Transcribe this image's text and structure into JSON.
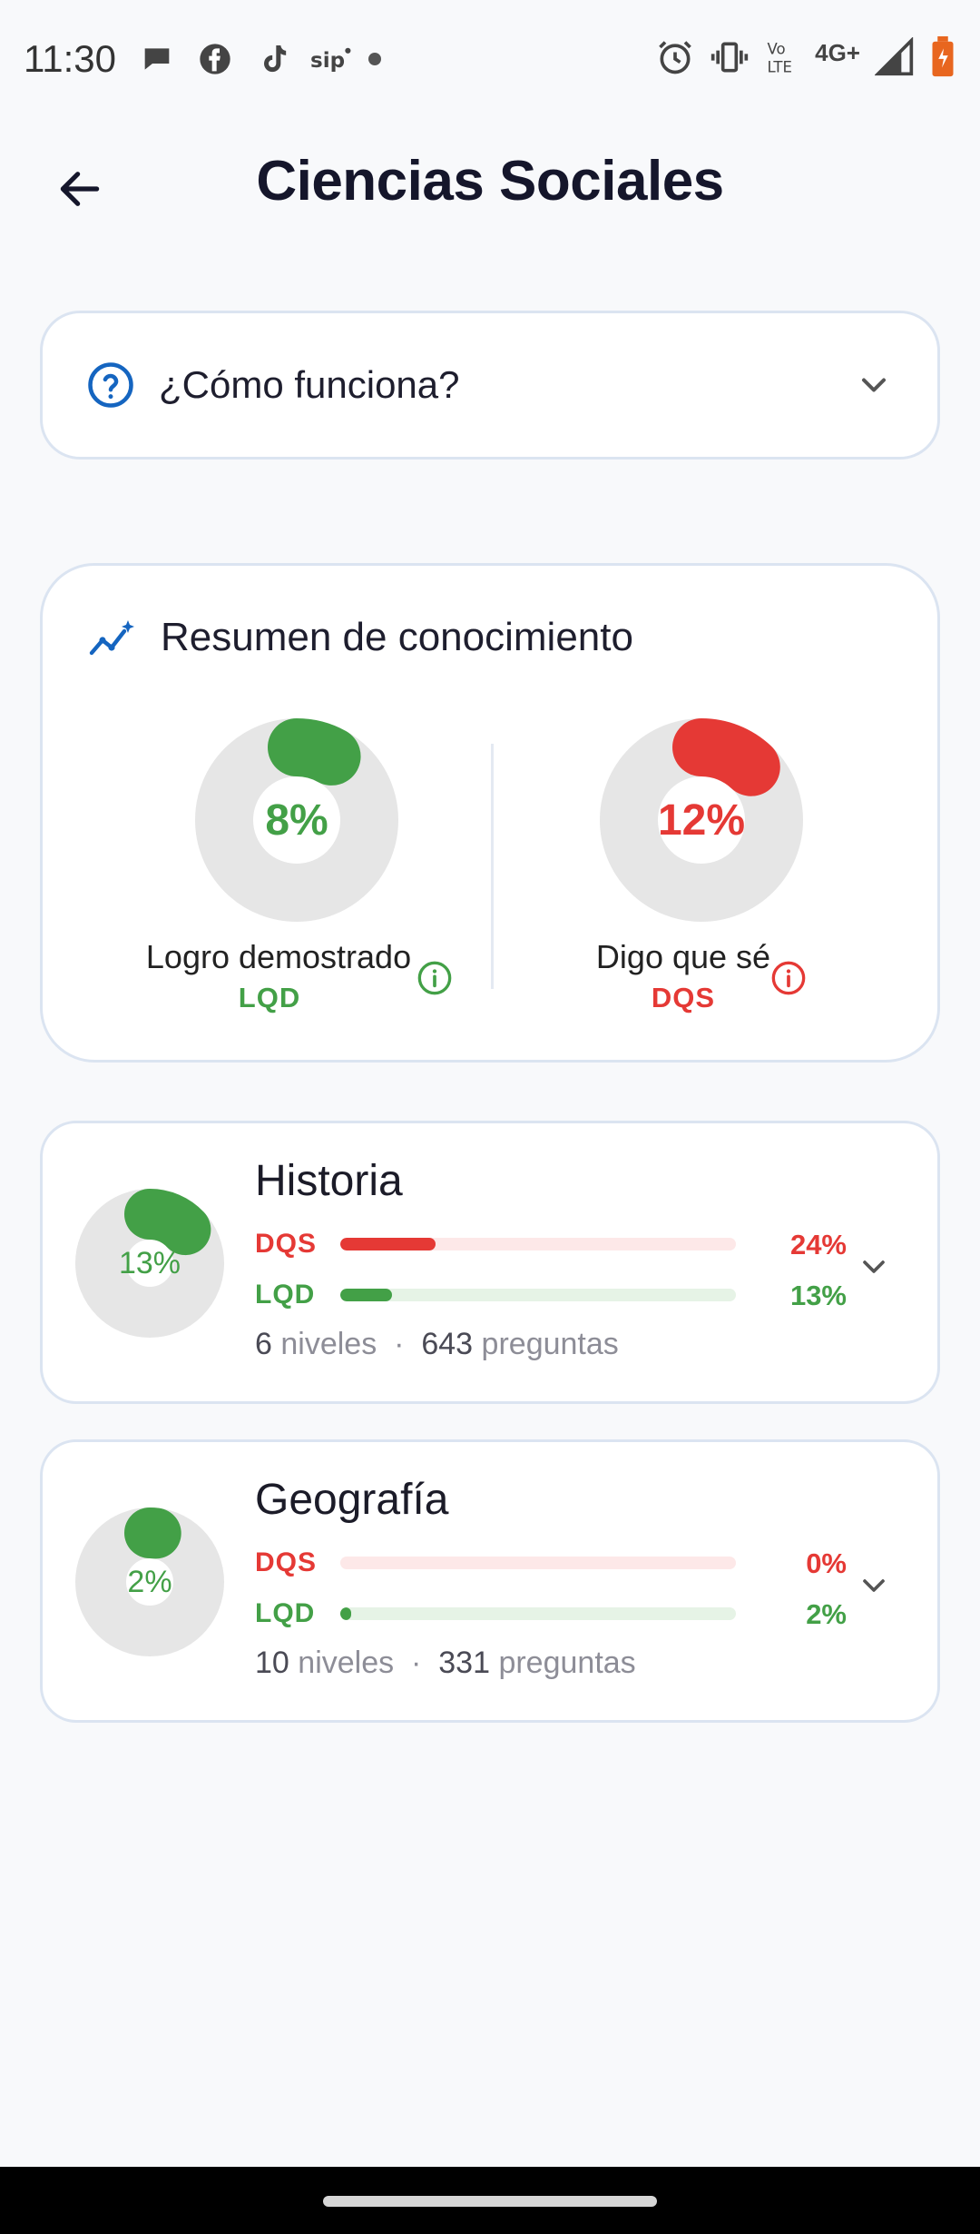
{
  "status_bar": {
    "time": "11:30",
    "network": "4G+",
    "icons_left": [
      "chat-bubble-icon",
      "facebook-icon",
      "tiktok-icon",
      "sip-icon",
      "dot-icon"
    ],
    "icons_right": [
      "alarm-icon",
      "vibrate-icon",
      "volte-icon",
      "signal-icon",
      "battery-icon"
    ]
  },
  "header": {
    "title": "Ciencias Sociales"
  },
  "how_it_works": {
    "label": "¿Cómo funciona?"
  },
  "summary": {
    "title": "Resumen de conocimiento",
    "lqd": {
      "percent_label": "8%",
      "percent": 8,
      "label": "Logro demostrado",
      "abbr": "LQD"
    },
    "dqs": {
      "percent_label": "12%",
      "percent": 12,
      "label": "Digo que sé",
      "abbr": "DQS"
    }
  },
  "subjects": [
    {
      "title": "Historia",
      "ring_label": "13%",
      "ring_percent": 13,
      "dqs_label": "DQS",
      "dqs_pct_label": "24%",
      "dqs_pct": 24,
      "lqd_label": "LQD",
      "lqd_pct_label": "13%",
      "lqd_pct": 13,
      "levels": "6",
      "levels_word": "niveles",
      "questions": "643",
      "questions_word": "preguntas",
      "separator": "·"
    },
    {
      "title": "Geografía",
      "ring_label": "2%",
      "ring_percent": 2,
      "dqs_label": "DQS",
      "dqs_pct_label": "0%",
      "dqs_pct": 0,
      "lqd_label": "LQD",
      "lqd_pct_label": "2%",
      "lqd_pct": 2,
      "levels": "10",
      "levels_word": "niveles",
      "questions": "331",
      "questions_word": "preguntas",
      "separator": "·"
    }
  ],
  "colors": {
    "green": "#43a047",
    "red": "#e53935",
    "blue": "#1565c0",
    "ring_track": "#e6e6e6",
    "green_track": "#e6f3e6",
    "red_track": "#fde8e8"
  }
}
